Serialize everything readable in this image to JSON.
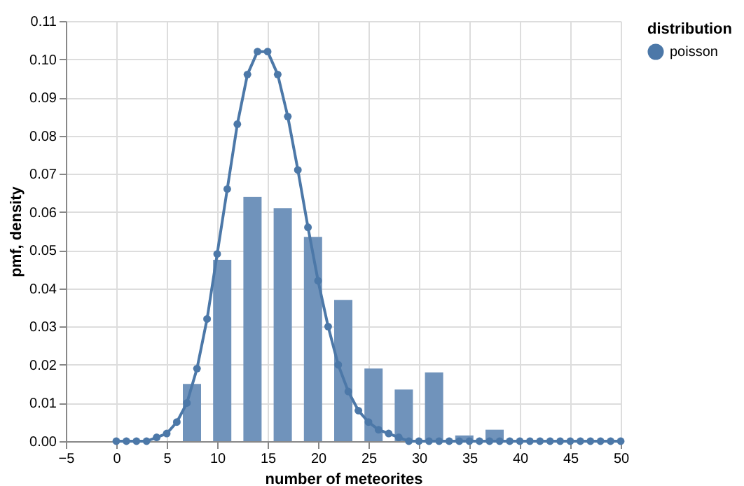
{
  "chart_data": {
    "type": "histogram",
    "xlabel": "number of meteorites",
    "ylabel": "pmf, density",
    "legend_title": "distribution",
    "xlim": [
      -5,
      50
    ],
    "xticks": [
      {
        "value": -5,
        "label": "−5"
      },
      0,
      5,
      10,
      15,
      20,
      25,
      30,
      35,
      40,
      45,
      50
    ],
    "ylim": [
      0,
      0.11
    ],
    "yticks": [
      {
        "value": 0,
        "label": "0.00"
      },
      0.01,
      0.02,
      0.03,
      0.04,
      0.05,
      0.06,
      0.07,
      0.08,
      0.09,
      {
        "value": 0.1,
        "label": "0.10"
      },
      0.11
    ],
    "grid": true,
    "legend": "top right",
    "marker": "circle",
    "line_style": "solid",
    "series": [
      {
        "color": "#7093bb",
        "bins": [
          6,
          9,
          12,
          15,
          18,
          21,
          24,
          27,
          30,
          33,
          36,
          39
        ],
        "values": [
          0.015,
          0.0475,
          0.064,
          0.061,
          0.0535,
          0.037,
          0.019,
          0.0135,
          0.018,
          0.0015,
          0.003
        ]
      },
      {
        "type": "line",
        "name": "poisson",
        "color": "#4c78a8",
        "x": [
          0,
          1,
          2,
          3,
          4,
          5,
          6,
          7,
          8,
          9,
          10,
          11,
          12,
          13,
          14,
          15,
          16,
          17,
          18,
          19,
          20,
          21,
          22,
          23,
          24,
          25,
          26,
          27,
          28,
          29,
          30,
          31,
          32,
          33,
          34,
          35,
          36,
          37,
          38,
          39,
          40,
          41,
          42,
          43,
          44,
          45,
          46,
          47,
          48,
          49,
          50
        ],
        "values": [
          0,
          0,
          0,
          0,
          0.001,
          0.002,
          0.005,
          0.01,
          0.019,
          0.032,
          0.049,
          0.066,
          0.083,
          0.096,
          0.102,
          0.102,
          0.096,
          0.085,
          0.071,
          0.056,
          0.042,
          0.03,
          0.02,
          0.013,
          0.008,
          0.005,
          0.003,
          0.002,
          0.001,
          0,
          0,
          0,
          0,
          0,
          0,
          0,
          0,
          0,
          0,
          0,
          0,
          0,
          0,
          0,
          0,
          0,
          0,
          0,
          0,
          0,
          0
        ]
      }
    ]
  }
}
